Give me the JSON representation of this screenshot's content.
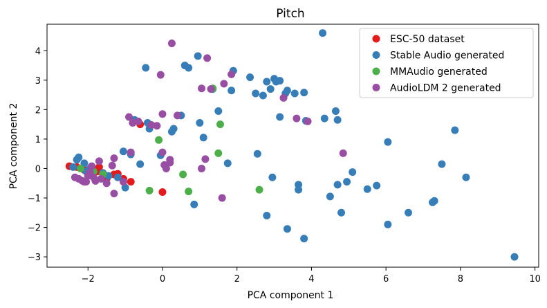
{
  "chart_data": {
    "type": "scatter",
    "title": "Pitch",
    "xlabel": "PCA component 1",
    "ylabel": "PCA component 2",
    "xlim": [
      -3.1,
      10.1
    ],
    "ylim": [
      -3.35,
      4.9
    ],
    "xticks": [
      -2,
      0,
      2,
      4,
      6,
      8,
      10
    ],
    "yticks": [
      -3,
      -2,
      -1,
      0,
      1,
      2,
      3,
      4
    ],
    "xtick_labels": [
      "−2",
      "0",
      "2",
      "4",
      "6",
      "8",
      "10"
    ],
    "ytick_labels": [
      "−3",
      "−2",
      "−1",
      "0",
      "1",
      "2",
      "3",
      "4"
    ],
    "grid": false,
    "legend_position": "top-right",
    "series": [
      {
        "name": "ESC-50 dataset",
        "color": "#e41a1c",
        "points": [
          [
            -2.5,
            0.08
          ],
          [
            -2.3,
            0.05
          ],
          [
            -2.1,
            -0.05
          ],
          [
            -1.9,
            0.02
          ],
          [
            -1.7,
            0.05
          ],
          [
            -1.55,
            -0.25
          ],
          [
            -1.3,
            -0.2
          ],
          [
            -1.2,
            -0.18
          ],
          [
            -1.05,
            -0.35
          ],
          [
            -0.85,
            -0.45
          ],
          [
            -1.5,
            -0.35
          ],
          [
            -1.75,
            -0.1
          ],
          [
            -0.6,
            1.5
          ],
          [
            0.0,
            -0.8
          ]
        ]
      },
      {
        "name": "Stable Audio generated",
        "color": "#377eb8",
        "points": [
          [
            -2.4,
            0.05
          ],
          [
            -2.3,
            0.3
          ],
          [
            -2.25,
            0.38
          ],
          [
            -2.1,
            0.18
          ],
          [
            -2.05,
            -0.1
          ],
          [
            -1.95,
            0.0
          ],
          [
            -1.6,
            -0.15
          ],
          [
            -1.45,
            -0.25
          ],
          [
            -1.2,
            -0.3
          ],
          [
            -1.05,
            0.58
          ],
          [
            -0.85,
            0.48
          ],
          [
            -1.0,
            -0.65
          ],
          [
            -0.6,
            0.15
          ],
          [
            -0.45,
            3.42
          ],
          [
            -0.4,
            1.55
          ],
          [
            -0.35,
            1.35
          ],
          [
            -0.75,
            1.65
          ],
          [
            0.25,
            1.25
          ],
          [
            0.3,
            1.35
          ],
          [
            -0.05,
            0.45
          ],
          [
            0.5,
            1.8
          ],
          [
            0.6,
            3.5
          ],
          [
            0.7,
            3.42
          ],
          [
            0.95,
            3.82
          ],
          [
            1.0,
            1.55
          ],
          [
            1.1,
            1.05
          ],
          [
            0.85,
            -1.22
          ],
          [
            1.35,
            2.7
          ],
          [
            1.5,
            1.95
          ],
          [
            1.75,
            0.18
          ],
          [
            1.85,
            2.65
          ],
          [
            1.9,
            3.32
          ],
          [
            2.35,
            3.1
          ],
          [
            2.5,
            2.55
          ],
          [
            2.55,
            0.5
          ],
          [
            2.7,
            2.48
          ],
          [
            2.8,
            2.95
          ],
          [
            2.8,
            -1.6
          ],
          [
            2.9,
            2.7
          ],
          [
            2.95,
            -0.3
          ],
          [
            3.0,
            3.05
          ],
          [
            3.05,
            2.95
          ],
          [
            3.15,
            2.98
          ],
          [
            3.15,
            1.75
          ],
          [
            3.3,
            2.55
          ],
          [
            3.35,
            2.65
          ],
          [
            3.35,
            -2.05
          ],
          [
            3.55,
            2.55
          ],
          [
            3.65,
            -0.55
          ],
          [
            3.65,
            -0.72
          ],
          [
            3.8,
            2.58
          ],
          [
            3.8,
            -2.38
          ],
          [
            3.85,
            1.62
          ],
          [
            4.3,
            4.6
          ],
          [
            4.35,
            1.7
          ],
          [
            4.5,
            -0.95
          ],
          [
            4.65,
            1.95
          ],
          [
            4.7,
            1.65
          ],
          [
            4.7,
            -0.55
          ],
          [
            4.8,
            -1.5
          ],
          [
            4.95,
            -0.45
          ],
          [
            5.1,
            -0.12
          ],
          [
            5.5,
            -0.7
          ],
          [
            5.75,
            -0.58
          ],
          [
            6.05,
            0.9
          ],
          [
            6.05,
            -1.9
          ],
          [
            6.6,
            -1.5
          ],
          [
            7.25,
            -1.15
          ],
          [
            7.3,
            -1.1
          ],
          [
            7.5,
            0.15
          ],
          [
            7.85,
            1.3
          ],
          [
            8.15,
            -0.3
          ],
          [
            9.45,
            -3.0
          ]
        ]
      },
      {
        "name": "MMAudio generated",
        "color": "#4daf4a",
        "points": [
          [
            -2.2,
            0.0
          ],
          [
            -1.85,
            -0.1
          ],
          [
            -1.6,
            -0.2
          ],
          [
            -0.35,
            -0.75
          ],
          [
            -0.1,
            0.97
          ],
          [
            0.55,
            -0.2
          ],
          [
            0.7,
            -0.78
          ],
          [
            1.35,
            2.72
          ],
          [
            1.5,
            0.52
          ],
          [
            1.55,
            1.5
          ],
          [
            2.6,
            -0.72
          ]
        ]
      },
      {
        "name": "AudioLDM 2 generated",
        "color": "#984ea3",
        "points": [
          [
            -2.35,
            -0.3
          ],
          [
            -2.25,
            -0.35
          ],
          [
            -2.15,
            -0.42
          ],
          [
            -2.05,
            -0.45
          ],
          [
            -2.0,
            -0.25
          ],
          [
            -1.95,
            -0.12
          ],
          [
            -1.9,
            0.08
          ],
          [
            -1.85,
            -0.3
          ],
          [
            -1.8,
            -0.42
          ],
          [
            -1.7,
            0.25
          ],
          [
            -1.65,
            -0.35
          ],
          [
            -1.5,
            -0.5
          ],
          [
            -1.35,
            0.1
          ],
          [
            -1.3,
            0.35
          ],
          [
            -1.3,
            -0.85
          ],
          [
            -2.1,
            -0.45
          ],
          [
            -1.05,
            -0.45
          ],
          [
            -0.85,
            0.55
          ],
          [
            -0.8,
            1.55
          ],
          [
            -0.9,
            1.75
          ],
          [
            -0.65,
            1.6
          ],
          [
            -0.3,
            1.48
          ],
          [
            -0.15,
            1.45
          ],
          [
            -0.05,
            3.18
          ],
          [
            0.0,
            1.85
          ],
          [
            0.0,
            0.55
          ],
          [
            0.05,
            0.12
          ],
          [
            0.1,
            0.0
          ],
          [
            0.2,
            0.2
          ],
          [
            0.2,
            0.3
          ],
          [
            0.25,
            4.25
          ],
          [
            0.4,
            1.8
          ],
          [
            1.05,
            2.72
          ],
          [
            1.05,
            0.0
          ],
          [
            1.15,
            0.32
          ],
          [
            1.2,
            3.75
          ],
          [
            1.3,
            2.7
          ],
          [
            1.6,
            -1.0
          ],
          [
            1.65,
            2.88
          ],
          [
            1.85,
            3.2
          ],
          [
            3.25,
            2.4
          ],
          [
            3.6,
            1.7
          ],
          [
            3.9,
            1.6
          ],
          [
            4.85,
            0.52
          ]
        ]
      }
    ]
  }
}
